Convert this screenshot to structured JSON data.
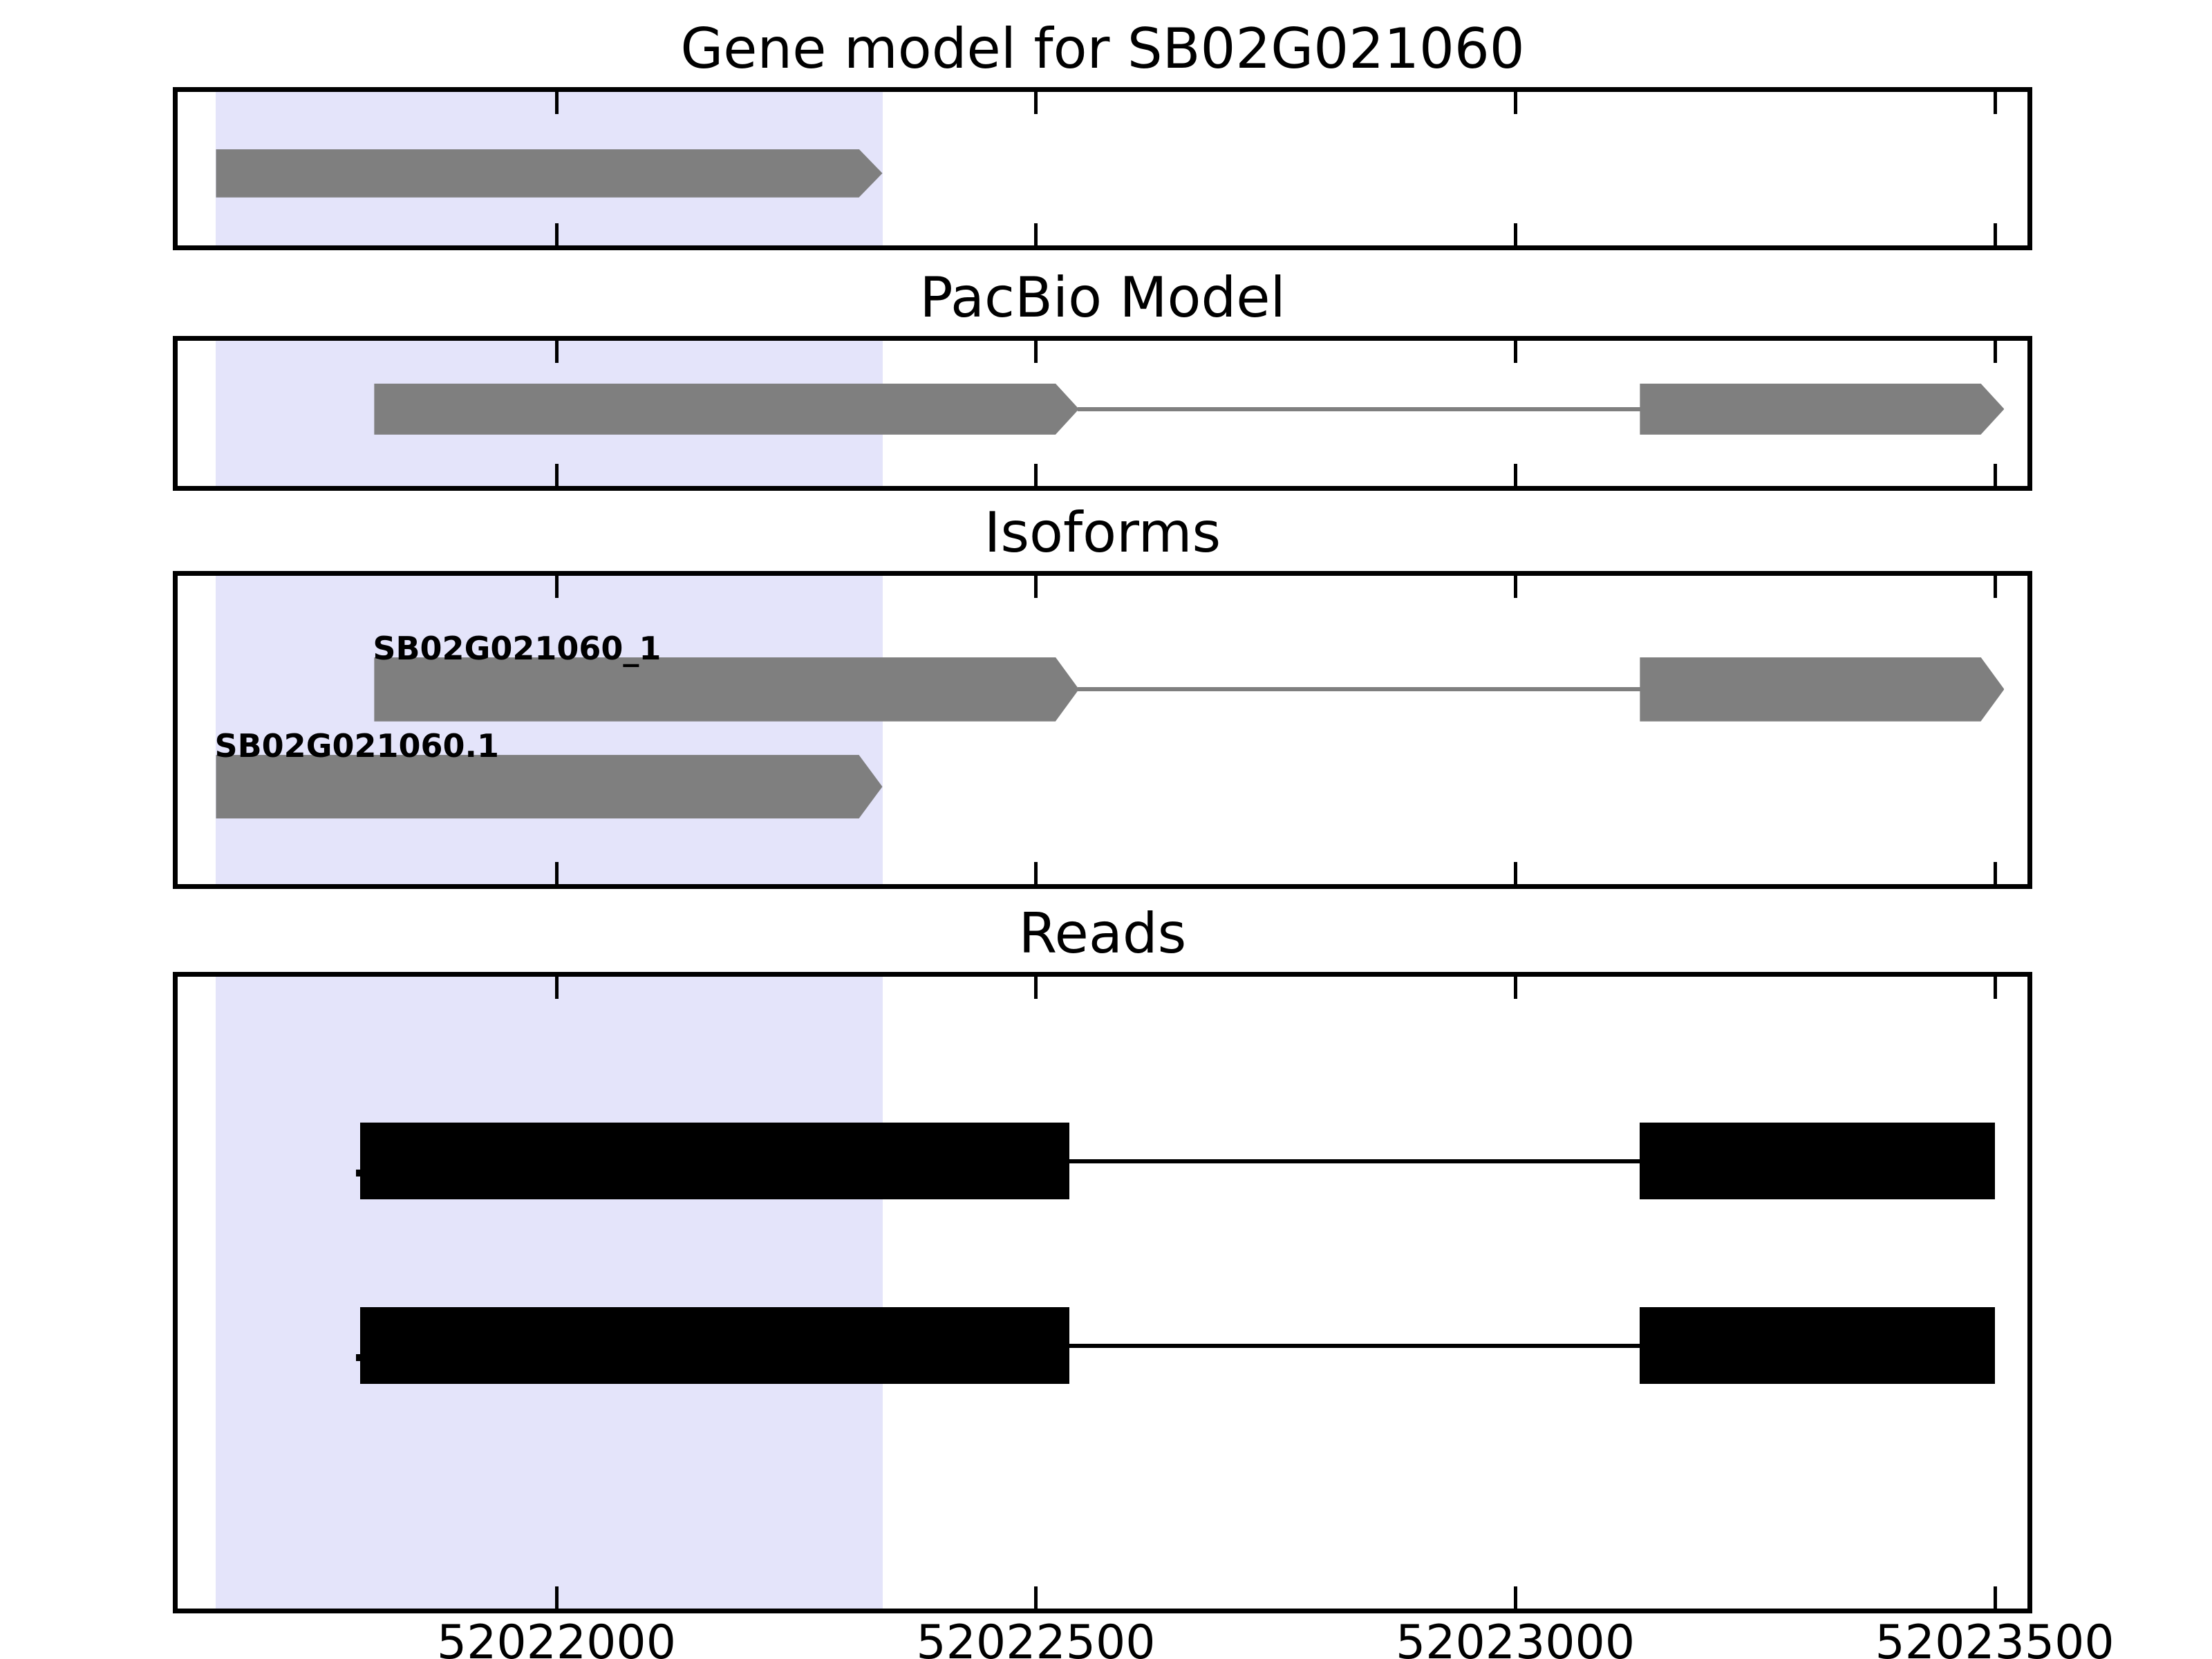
{
  "figure_title": "Gene model for SB02G021060",
  "chart_data": {
    "type": "gene-track",
    "title": "Gene model for SB02G021060",
    "xlabel": "",
    "xlim": [
      52021605,
      52023532
    ],
    "x_ticks": [
      52022000,
      52022500,
      52023000,
      52023500
    ],
    "x_tick_labels": [
      "52022000",
      "52022500",
      "52023000",
      "52023500"
    ],
    "grid": false,
    "highlight_span": {
      "start": 52021645,
      "end": 52022340,
      "color": "#E4E4FA"
    },
    "colors": {
      "model_gray": "#7f7f7f",
      "read_black": "#000000",
      "frame": "#000000",
      "background": "#ffffff",
      "highlight": "#E4E4FA"
    },
    "tracks": [
      {
        "title": "Gene model for SB02G021060",
        "features": [
          {
            "name": "SB02G021060",
            "type": "gene",
            "strand": "+",
            "shape": "arrow",
            "color": "#7f7f7f",
            "exons": [
              [
                52021645,
                52022340
              ]
            ]
          }
        ]
      },
      {
        "title": "PacBio Model",
        "features": [
          {
            "name": "pacbio-model",
            "type": "transcript",
            "strand": "+",
            "shape": "arrow",
            "color": "#7f7f7f",
            "exons": [
              [
                52021810,
                52022545
              ],
              [
                52023130,
                52023510
              ]
            ]
          }
        ]
      },
      {
        "title": "Isoforms",
        "features": [
          {
            "name": "SB02G021060_1",
            "label": "SB02G021060_1",
            "type": "transcript",
            "strand": "+",
            "shape": "arrow",
            "color": "#7f7f7f",
            "exons": [
              [
                52021810,
                52022545
              ],
              [
                52023130,
                52023510
              ]
            ]
          },
          {
            "name": "SB02G021060.1",
            "label": "SB02G021060.1",
            "type": "transcript",
            "strand": "+",
            "shape": "arrow",
            "color": "#7f7f7f",
            "exons": [
              [
                52021645,
                52022340
              ]
            ]
          }
        ]
      },
      {
        "title": "Reads",
        "features": [
          {
            "name": "read-1",
            "type": "read",
            "shape": "rect",
            "mark": true,
            "color": "#000000",
            "exons": [
              [
                52021795,
                52022535
              ],
              [
                52023130,
                52023500
              ]
            ]
          },
          {
            "name": "read-2",
            "type": "read",
            "shape": "rect",
            "mark": true,
            "color": "#000000",
            "exons": [
              [
                52021795,
                52022535
              ],
              [
                52023130,
                52023500
              ]
            ]
          }
        ]
      }
    ]
  }
}
